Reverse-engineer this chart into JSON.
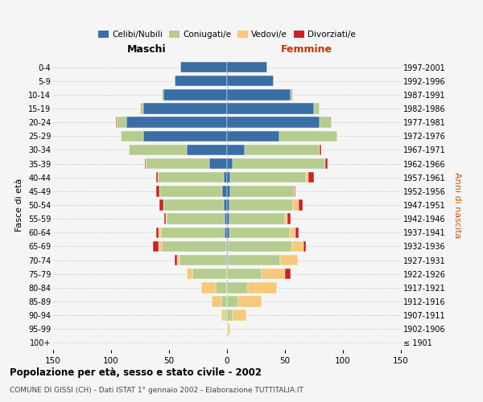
{
  "age_groups": [
    "100+",
    "95-99",
    "90-94",
    "85-89",
    "80-84",
    "75-79",
    "70-74",
    "65-69",
    "60-64",
    "55-59",
    "50-54",
    "45-49",
    "40-44",
    "35-39",
    "30-34",
    "25-29",
    "20-24",
    "15-19",
    "10-14",
    "5-9",
    "0-4"
  ],
  "birth_years": [
    "≤ 1901",
    "1902-1906",
    "1907-1911",
    "1912-1916",
    "1917-1921",
    "1922-1926",
    "1927-1931",
    "1932-1936",
    "1937-1941",
    "1942-1946",
    "1947-1951",
    "1952-1956",
    "1957-1961",
    "1962-1966",
    "1967-1971",
    "1972-1976",
    "1977-1981",
    "1982-1986",
    "1987-1991",
    "1992-1996",
    "1997-2001"
  ],
  "maschi": {
    "celibi": [
      0,
      0,
      0,
      0,
      0,
      0,
      1,
      1,
      2,
      2,
      3,
      4,
      3,
      15,
      35,
      72,
      87,
      72,
      55,
      45,
      40
    ],
    "coniugati": [
      0,
      0,
      2,
      5,
      10,
      30,
      40,
      55,
      55,
      50,
      52,
      54,
      57,
      55,
      50,
      20,
      8,
      3,
      1,
      0,
      0
    ],
    "vedovi": [
      0,
      0,
      3,
      8,
      12,
      5,
      2,
      3,
      2,
      1,
      0,
      0,
      0,
      0,
      0,
      0,
      0,
      0,
      0,
      0,
      0
    ],
    "divorziati": [
      0,
      0,
      0,
      0,
      0,
      0,
      2,
      5,
      2,
      1,
      3,
      3,
      1,
      1,
      0,
      0,
      1,
      0,
      0,
      0,
      0
    ]
  },
  "femmine": {
    "celibi": [
      0,
      0,
      0,
      0,
      0,
      0,
      1,
      1,
      2,
      2,
      2,
      3,
      3,
      5,
      15,
      45,
      80,
      75,
      55,
      40,
      35
    ],
    "coniugati": [
      0,
      1,
      5,
      10,
      18,
      30,
      45,
      55,
      52,
      48,
      55,
      55,
      65,
      80,
      65,
      50,
      10,
      5,
      2,
      0,
      0
    ],
    "vedovi": [
      0,
      2,
      12,
      20,
      25,
      20,
      15,
      10,
      5,
      2,
      5,
      0,
      2,
      0,
      0,
      0,
      0,
      0,
      0,
      0,
      0
    ],
    "divorziati": [
      0,
      0,
      0,
      0,
      0,
      5,
      0,
      2,
      3,
      3,
      3,
      1,
      5,
      2,
      1,
      0,
      0,
      0,
      0,
      0,
      0
    ]
  },
  "colors": {
    "celibi": "#3a6ea5",
    "coniugati": "#b5cc8e",
    "vedovi": "#f5c97a",
    "divorziati": "#cc2222"
  },
  "legend_labels": [
    "Celibi/Nubili",
    "Coniugati/e",
    "Vedovi/e",
    "Divorziati/e"
  ],
  "title": "Popolazione per età, sesso e stato civile - 2002",
  "subtitle": "COMUNE DI GISSI (CH) - Dati ISTAT 1° gennaio 2002 - Elaborazione TUTTITALIA.IT",
  "xlabel_left": "Maschi",
  "xlabel_right": "Femmine",
  "ylabel_left": "Fasce di età",
  "ylabel_right": "Anni di nascita",
  "xlim": 150,
  "bg_color": "#f5f5f5",
  "grid_color": "#cccccc"
}
